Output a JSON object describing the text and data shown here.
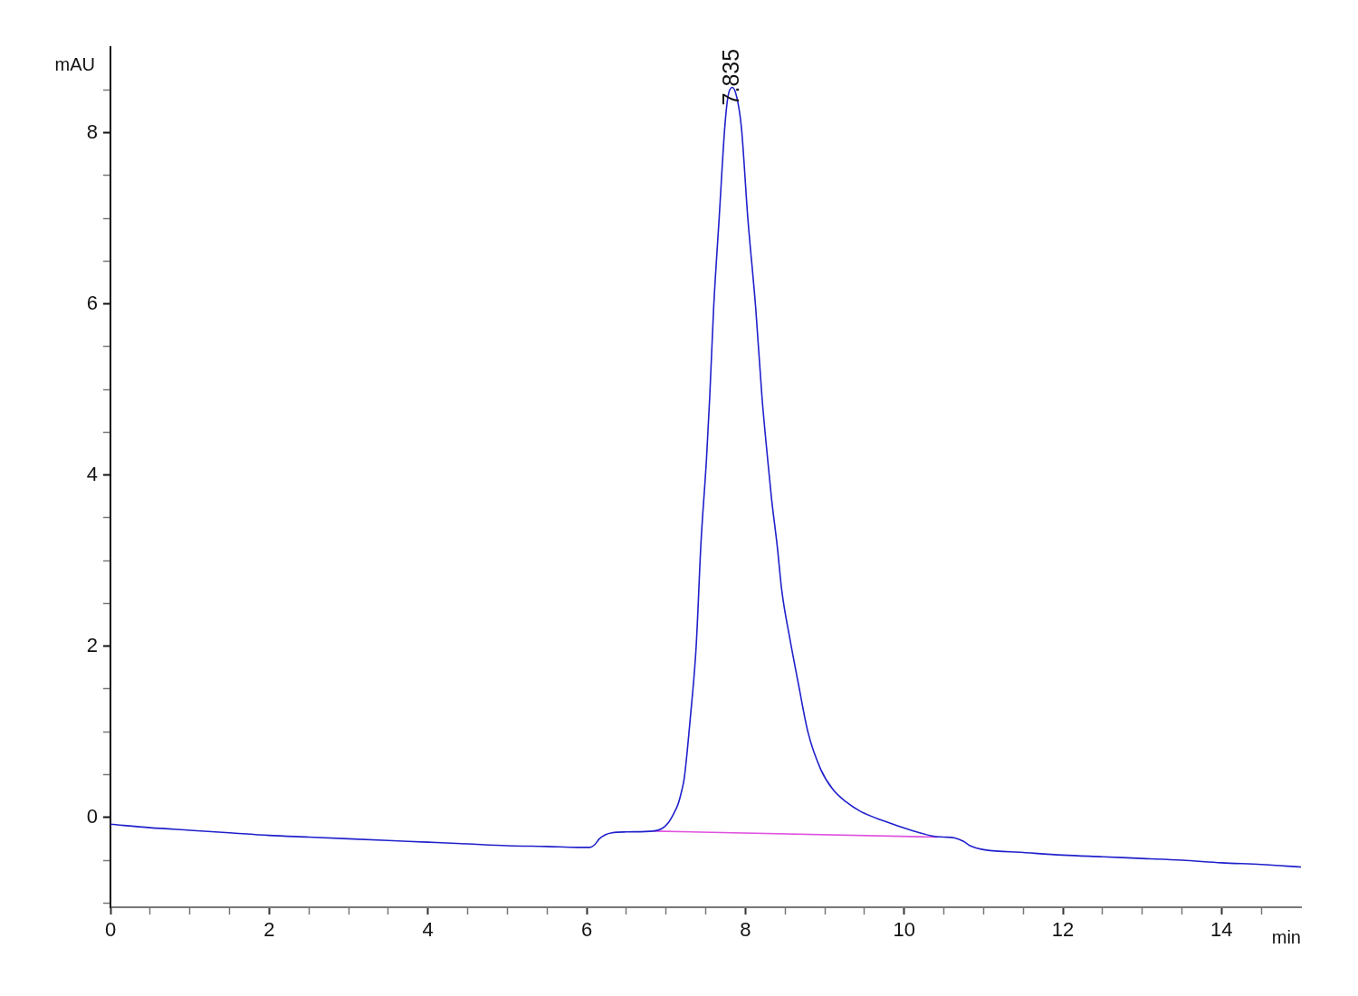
{
  "chart_data": {
    "type": "line",
    "xlabel": "min",
    "ylabel": "mAU",
    "xlim": [
      0,
      15
    ],
    "xticks": [
      0,
      {
        "value": 0.5,
        "label": null
      },
      {
        "value": 1,
        "label": null
      },
      {
        "value": 1.5,
        "label": null
      },
      2,
      {
        "value": 2.5,
        "label": null
      },
      {
        "value": 3,
        "label": null
      },
      {
        "value": 3.5,
        "label": null
      },
      4,
      {
        "value": 4.5,
        "label": null
      },
      {
        "value": 5,
        "label": null
      },
      {
        "value": 5.5,
        "label": null
      },
      6,
      {
        "value": 6.5,
        "label": null
      },
      {
        "value": 7,
        "label": null
      },
      {
        "value": 7.5,
        "label": null
      },
      8,
      {
        "value": 8.5,
        "label": null
      },
      {
        "value": 9,
        "label": null
      },
      {
        "value": 9.5,
        "label": null
      },
      10,
      {
        "value": 10.5,
        "label": null
      },
      {
        "value": 11,
        "label": null
      },
      {
        "value": 11.5,
        "label": null
      },
      12,
      {
        "value": 12.5,
        "label": null
      },
      {
        "value": 13,
        "label": null
      },
      {
        "value": 13.5,
        "label": null
      },
      14,
      {
        "value": 14.5,
        "label": null
      }
    ],
    "ylim": [
      -1.05,
      9
    ],
    "yticks": [
      {
        "value": -1,
        "label": null
      },
      {
        "value": -0.5,
        "label": null
      },
      0,
      {
        "value": 0.5,
        "label": null
      },
      {
        "value": 1,
        "label": null
      },
      {
        "value": 1.5,
        "label": null
      },
      2,
      {
        "value": 2.5,
        "label": null
      },
      {
        "value": 3,
        "label": null
      },
      {
        "value": 3.5,
        "label": null
      },
      4,
      {
        "value": 4.5,
        "label": null
      },
      {
        "value": 5,
        "label": null
      },
      {
        "value": 5.5,
        "label": null
      },
      6,
      {
        "value": 6.5,
        "label": null
      },
      {
        "value": 7,
        "label": null
      },
      {
        "value": 7.5,
        "label": null
      },
      8,
      {
        "value": 8.5,
        "label": null
      }
    ],
    "grid": false,
    "marker": "none",
    "line_style": "solid",
    "annotations": [
      {
        "text": "7.835",
        "x": 7.835,
        "y": 8.53
      }
    ],
    "series": [
      {
        "color": "#2020cc",
        "x": [
          0,
          0.5,
          1,
          1.5,
          2,
          2.5,
          3,
          3.5,
          4,
          4.5,
          5,
          5.5,
          5.9,
          6.04,
          6.1,
          6.16,
          6.24,
          6.32,
          6.5,
          6.84,
          6.95,
          7.03,
          7.1,
          7.15,
          7.2,
          7.23,
          7.27,
          7.3,
          7.38,
          7.44,
          7.51,
          7.55,
          7.6,
          7.67,
          7.74,
          7.78,
          7.835,
          7.89,
          7.95,
          8.03,
          8.13,
          8.21,
          8.28,
          8.33,
          8.4,
          8.46,
          8.56,
          8.67,
          8.79,
          8.95,
          9.1,
          9.27,
          9.45,
          9.74,
          10.09,
          10.37,
          10.5,
          10.64,
          10.75,
          10.83,
          10.92,
          11.02,
          11.5,
          12,
          12.5,
          13,
          13.5,
          14,
          14.5,
          15
        ],
        "values": [
          -0.08,
          -0.12,
          -0.15,
          -0.18,
          -0.21,
          -0.23,
          -0.25,
          -0.27,
          -0.29,
          -0.31,
          -0.33,
          -0.34,
          -0.35,
          -0.35,
          -0.32,
          -0.25,
          -0.2,
          -0.18,
          -0.17,
          -0.16,
          -0.13,
          -0.06,
          0.05,
          0.15,
          0.32,
          0.46,
          0.8,
          1.1,
          2.0,
          3.2,
          4.19,
          4.9,
          5.95,
          7.01,
          8.06,
          8.42,
          8.53,
          8.42,
          8.06,
          7.01,
          5.95,
          4.9,
          4.19,
          3.72,
          3.18,
          2.64,
          2.09,
          1.55,
          0.99,
          0.56,
          0.33,
          0.18,
          0.07,
          -0.04,
          -0.15,
          -0.22,
          -0.23,
          -0.24,
          -0.28,
          -0.33,
          -0.36,
          -0.38,
          -0.41,
          -0.44,
          -0.46,
          -0.48,
          -0.5,
          -0.53,
          -0.55,
          -0.58
        ]
      },
      {
        "color": "#e052e0",
        "x": [
          6.85,
          10.42
        ],
        "values": [
          -0.16,
          -0.23
        ]
      }
    ]
  }
}
